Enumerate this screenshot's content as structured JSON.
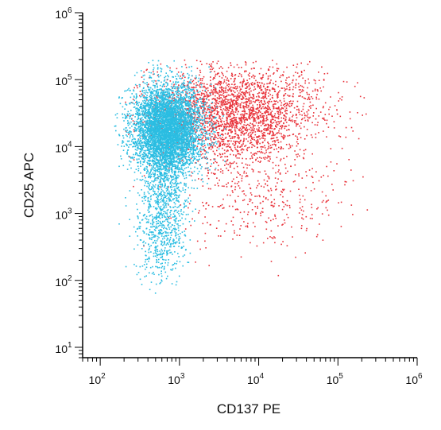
{
  "chart_data": {
    "type": "scatter",
    "title": "",
    "xlabel": "CD137 PE",
    "ylabel": "CD25 APC",
    "x_scale": "log",
    "y_scale": "log",
    "xlim": [
      60,
      1000000
    ],
    "ylim": [
      7,
      1000000
    ],
    "grid": false,
    "legend": "none",
    "x_ticks": [
      {
        "base": "10",
        "exp": "2",
        "value": 100
      },
      {
        "base": "10",
        "exp": "3",
        "value": 1000
      },
      {
        "base": "10",
        "exp": "4",
        "value": 10000
      },
      {
        "base": "10",
        "exp": "5",
        "value": 100000
      },
      {
        "base": "10",
        "exp": "6",
        "value": 1000000
      }
    ],
    "y_ticks": [
      {
        "base": "10",
        "exp": "1",
        "value": 10
      },
      {
        "base": "10",
        "exp": "2",
        "value": 100
      },
      {
        "base": "10",
        "exp": "3",
        "value": 1000
      },
      {
        "base": "10",
        "exp": "4",
        "value": 10000
      },
      {
        "base": "10",
        "exp": "5",
        "value": 100000
      },
      {
        "base": "10",
        "exp": "6",
        "value": 1000000
      }
    ],
    "series": [
      {
        "color": "#e8323a",
        "approx_point_count": 3000,
        "density_center": {
          "x": 5000,
          "y": 35000
        },
        "x_range": [
          200,
          1000000
        ],
        "y_range": [
          100,
          200000
        ]
      },
      {
        "color": "#2bbde2",
        "approx_point_count": 6000,
        "density_center": {
          "x": 700,
          "y": 20000
        },
        "x_range": [
          150,
          10000
        ],
        "y_range": [
          60,
          200000
        ]
      }
    ]
  }
}
